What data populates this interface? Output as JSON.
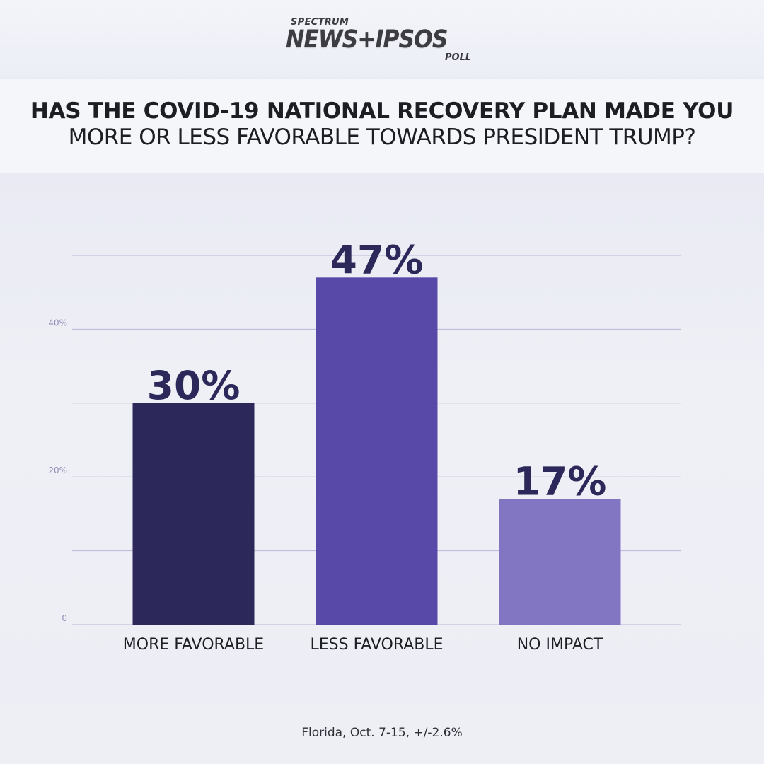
{
  "logo": {
    "top": "SPECTRUM",
    "main": "NEWS+IPSOS",
    "sub": "POLL"
  },
  "question": {
    "line1": "HAS THE COVID-19 NATIONAL RECOVERY PLAN MADE YOU",
    "line2": "MORE OR LESS FAVORABLE TOWARDS PRESIDENT TRUMP?"
  },
  "footer": "Florida, Oct. 7-15, +/-2.6%",
  "colors": {
    "more_favorable": "#2c2859",
    "less_favorable": "#5849a8",
    "no_impact": "#8275c2",
    "label": "#2c2859",
    "grid": "#b8b6d6"
  },
  "chart_data": {
    "type": "bar",
    "categories": [
      "MORE FAVORABLE",
      "LESS FAVORABLE",
      "NO IMPACT"
    ],
    "values": [
      30,
      47,
      17
    ],
    "value_labels": [
      "30%",
      "47%",
      "17%"
    ],
    "yticks": [
      {
        "value": 0,
        "label": "0"
      },
      {
        "value": 10,
        "label": ""
      },
      {
        "value": 20,
        "label": "20%"
      },
      {
        "value": 30,
        "label": ""
      },
      {
        "value": 40,
        "label": "40%"
      },
      {
        "value": 50,
        "label": ""
      }
    ],
    "ylim": [
      0,
      50
    ],
    "grid": true,
    "title": "",
    "xlabel": "",
    "ylabel": ""
  }
}
